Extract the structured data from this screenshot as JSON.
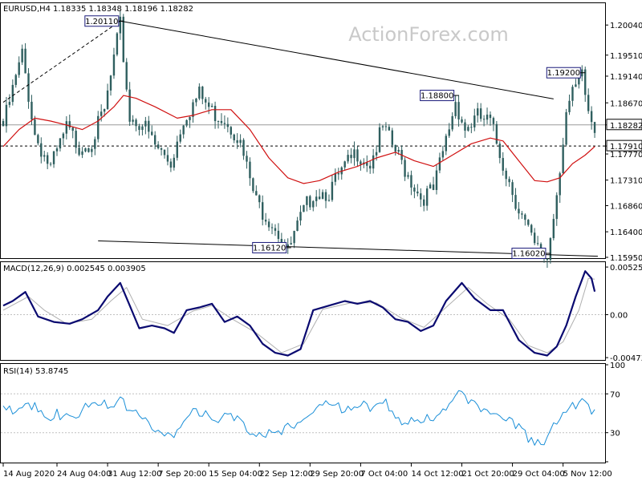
{
  "symbol": "EURUSD,H4",
  "ohlc_text": "1.18335 1.18348 1.18196 1.18282",
  "watermark": "ActionForex.com",
  "colors": {
    "candle": "#2f5f5f",
    "ma": "#d01010",
    "macd": "#0a0a70",
    "signal": "#b0b0b0",
    "rsi": "#1a8fd8",
    "grid": "#c0c0c0",
    "trendline": "#000000"
  },
  "chart_data": [
    {
      "type": "candlestick",
      "title": "EURUSD,H4",
      "ylim": [
        1.1595,
        1.2041
      ],
      "yticks": [
        "1.20040",
        "1.19510",
        "1.19140",
        "1.18670",
        "1.18282",
        "1.17910",
        "1.17770",
        "1.17310",
        "1.16860",
        "1.16400",
        "1.15950"
      ],
      "current_price": "1.18282",
      "support_level": "1.17910",
      "annotations": [
        {
          "text": "1.20110",
          "value": 1.2011,
          "x_index": 37
        },
        {
          "text": "1.18800",
          "value": 1.188,
          "x_index": 143
        },
        {
          "text": "1.19200",
          "value": 1.192,
          "x_index": 183
        },
        {
          "text": "1.16120",
          "value": 1.1612,
          "x_index": 90
        },
        {
          "text": "1.16020",
          "value": 1.1602,
          "x_index": 172
        }
      ],
      "price_path": [
        [
          0,
          1.1835
        ],
        [
          6,
          1.196
        ],
        [
          10,
          1.182
        ],
        [
          15,
          1.176
        ],
        [
          20,
          1.183
        ],
        [
          24,
          1.18
        ],
        [
          28,
          1.181
        ],
        [
          32,
          1.186
        ],
        [
          37,
          1.2011
        ],
        [
          40,
          1.185
        ],
        [
          44,
          1.184
        ],
        [
          48,
          1.18
        ],
        [
          53,
          1.177
        ],
        [
          57,
          1.185
        ],
        [
          62,
          1.189
        ],
        [
          66,
          1.186
        ],
        [
          70,
          1.185
        ],
        [
          74,
          1.182
        ],
        [
          80,
          1.17
        ],
        [
          86,
          1.166
        ],
        [
          90,
          1.1612
        ],
        [
          94,
          1.167
        ],
        [
          98,
          1.172
        ],
        [
          103,
          1.172
        ],
        [
          108,
          1.176
        ],
        [
          112,
          1.179
        ],
        [
          116,
          1.177
        ],
        [
          120,
          1.183
        ],
        [
          124,
          1.179
        ],
        [
          128,
          1.175
        ],
        [
          132,
          1.171
        ],
        [
          136,
          1.172
        ],
        [
          140,
          1.181
        ],
        [
          143,
          1.188
        ],
        [
          146,
          1.183
        ],
        [
          150,
          1.185
        ],
        [
          154,
          1.184
        ],
        [
          158,
          1.177
        ],
        [
          163,
          1.169
        ],
        [
          168,
          1.162
        ],
        [
          172,
          1.1602
        ],
        [
          175,
          1.172
        ],
        [
          178,
          1.186
        ],
        [
          181,
          1.19
        ],
        [
          183,
          1.192
        ],
        [
          185,
          1.186
        ],
        [
          187,
          1.1828
        ]
      ],
      "ma_path": [
        [
          0,
          1.179
        ],
        [
          5,
          1.182
        ],
        [
          10,
          1.184
        ],
        [
          15,
          1.1835
        ],
        [
          20,
          1.1828
        ],
        [
          25,
          1.182
        ],
        [
          30,
          1.1835
        ],
        [
          35,
          1.186
        ],
        [
          38,
          1.188
        ],
        [
          42,
          1.1875
        ],
        [
          48,
          1.186
        ],
        [
          55,
          1.184
        ],
        [
          60,
          1.1845
        ],
        [
          66,
          1.1855
        ],
        [
          72,
          1.1855
        ],
        [
          78,
          1.182
        ],
        [
          84,
          1.177
        ],
        [
          90,
          1.1735
        ],
        [
          95,
          1.1725
        ],
        [
          100,
          1.173
        ],
        [
          106,
          1.1745
        ],
        [
          112,
          1.1755
        ],
        [
          118,
          1.177
        ],
        [
          124,
          1.178
        ],
        [
          130,
          1.1765
        ],
        [
          136,
          1.1755
        ],
        [
          142,
          1.1775
        ],
        [
          148,
          1.1795
        ],
        [
          154,
          1.1805
        ],
        [
          158,
          1.18
        ],
        [
          163,
          1.1765
        ],
        [
          168,
          1.173
        ],
        [
          172,
          1.1728
        ],
        [
          176,
          1.1735
        ],
        [
          180,
          1.176
        ],
        [
          184,
          1.1775
        ],
        [
          187,
          1.179
        ]
      ],
      "trendlines": [
        {
          "from": [
            37,
            1.2011
          ],
          "to": [
            174,
            1.1874
          ]
        },
        {
          "from": [
            0,
            1.1868
          ],
          "to": [
            37,
            1.2011
          ],
          "style": "dashed"
        },
        {
          "from": [
            30,
            1.1624
          ],
          "to": [
            188,
            1.1597
          ]
        }
      ]
    },
    {
      "type": "line",
      "title": "MACD(12,26,9) 0.002545 0.003905",
      "ylim": [
        -0.0049,
        0.0057
      ],
      "yticks": [
        "0.00525",
        "0.00",
        "-0.004732"
      ],
      "series": [
        {
          "name": "MACD",
          "path": [
            [
              0,
              0.001
            ],
            [
              3,
              0.0015
            ],
            [
              7,
              0.0025
            ],
            [
              11,
              -0.0002
            ],
            [
              16,
              -0.0008
            ],
            [
              21,
              -0.001
            ],
            [
              25,
              -0.0005
            ],
            [
              30,
              0.0005
            ],
            [
              33,
              0.002
            ],
            [
              37,
              0.0035
            ],
            [
              40,
              0.001
            ],
            [
              43,
              -0.0015
            ],
            [
              47,
              -0.0012
            ],
            [
              51,
              -0.0015
            ],
            [
              54,
              -0.002
            ],
            [
              58,
              0.0005
            ],
            [
              62,
              0.0008
            ],
            [
              66,
              0.0012
            ],
            [
              70,
              -0.0008
            ],
            [
              74,
              -0.0002
            ],
            [
              78,
              -0.0012
            ],
            [
              82,
              -0.0032
            ],
            [
              86,
              -0.0042
            ],
            [
              90,
              -0.0045
            ],
            [
              94,
              -0.0038
            ],
            [
              98,
              0.0005
            ],
            [
              103,
              0.001
            ],
            [
              108,
              0.0015
            ],
            [
              112,
              0.0012
            ],
            [
              116,
              0.0015
            ],
            [
              120,
              0.0008
            ],
            [
              124,
              -0.0005
            ],
            [
              128,
              -0.0008
            ],
            [
              132,
              -0.0018
            ],
            [
              136,
              -0.0012
            ],
            [
              140,
              0.0015
            ],
            [
              145,
              0.0035
            ],
            [
              149,
              0.0018
            ],
            [
              154,
              0.0005
            ],
            [
              158,
              0.0005
            ],
            [
              163,
              -0.0028
            ],
            [
              168,
              -0.0042
            ],
            [
              172,
              -0.0045
            ],
            [
              175,
              -0.0035
            ],
            [
              178,
              -0.0012
            ],
            [
              181,
              0.002
            ],
            [
              184,
              0.0048
            ],
            [
              186,
              0.004
            ],
            [
              187,
              0.002545
            ]
          ]
        },
        {
          "name": "Signal",
          "path": [
            [
              0,
              0.0005
            ],
            [
              8,
              0.002
            ],
            [
              13,
              0.0005
            ],
            [
              20,
              -0.001
            ],
            [
              28,
              -0.0005
            ],
            [
              34,
              0.0015
            ],
            [
              39,
              0.003
            ],
            [
              44,
              -0.0005
            ],
            [
              52,
              -0.0012
            ],
            [
              60,
              0.0004
            ],
            [
              66,
              0.001
            ],
            [
              72,
              -0.0004
            ],
            [
              80,
              -0.002
            ],
            [
              88,
              -0.0042
            ],
            [
              95,
              -0.0032
            ],
            [
              101,
              0.0006
            ],
            [
              110,
              0.0013
            ],
            [
              118,
              0.0013
            ],
            [
              126,
              -0.0004
            ],
            [
              133,
              -0.0014
            ],
            [
              140,
              0.0008
            ],
            [
              147,
              0.003
            ],
            [
              153,
              0.0012
            ],
            [
              160,
              -0.0005
            ],
            [
              166,
              -0.0034
            ],
            [
              172,
              -0.0042
            ],
            [
              177,
              -0.003
            ],
            [
              182,
              0.0005
            ],
            [
              185,
              0.004
            ],
            [
              187,
              0.003905
            ]
          ]
        }
      ]
    },
    {
      "type": "line",
      "title": "RSI(14) 53.8745",
      "ylim": [
        0,
        100
      ],
      "yticks": [
        "100",
        "70",
        "30",
        "0"
      ],
      "levels": [
        70,
        30
      ],
      "series": [
        {
          "name": "RSI",
          "path": [
            [
              0,
              55
            ],
            [
              4,
              62
            ],
            [
              8,
              70
            ],
            [
              11,
              55
            ],
            [
              15,
              45
            ],
            [
              19,
              58
            ],
            [
              23,
              52
            ],
            [
              27,
              60
            ],
            [
              31,
              58
            ],
            [
              35,
              68
            ],
            [
              38,
              74
            ],
            [
              40,
              55
            ],
            [
              44,
              48
            ],
            [
              48,
              40
            ],
            [
              52,
              38
            ],
            [
              56,
              35
            ],
            [
              60,
              55
            ],
            [
              64,
              58
            ],
            [
              68,
              52
            ],
            [
              72,
              48
            ],
            [
              76,
              40
            ],
            [
              80,
              38
            ],
            [
              84,
              34
            ],
            [
              88,
              30
            ],
            [
              92,
              42
            ],
            [
              96,
              58
            ],
            [
              100,
              60
            ],
            [
              104,
              58
            ],
            [
              108,
              62
            ],
            [
              112,
              67
            ],
            [
              116,
              55
            ],
            [
              120,
              64
            ],
            [
              124,
              55
            ],
            [
              128,
              45
            ],
            [
              132,
              42
            ],
            [
              136,
              48
            ],
            [
              140,
              65
            ],
            [
              144,
              75
            ],
            [
              148,
              60
            ],
            [
              152,
              62
            ],
            [
              156,
              57
            ],
            [
              160,
              42
            ],
            [
              164,
              34
            ],
            [
              168,
              28
            ],
            [
              172,
              30
            ],
            [
              175,
              42
            ],
            [
              178,
              55
            ],
            [
              181,
              65
            ],
            [
              183,
              70
            ],
            [
              185,
              68
            ],
            [
              187,
              53.87
            ]
          ]
        }
      ]
    }
  ],
  "x_axis": {
    "labels": [
      "14 Aug 2020",
      "24 Aug 04:00",
      "31 Aug 12:00",
      "7 Sep 20:00",
      "15 Sep 04:00",
      "22 Sep 12:00",
      "29 Sep 20:00",
      "7 Oct 04:00",
      "14 Oct 12:00",
      "21 Oct 20:00",
      "29 Oct 04:00",
      "5 Nov 12:00"
    ],
    "indices": [
      0,
      17,
      33,
      49,
      65,
      81,
      97,
      113,
      129,
      145,
      161,
      177
    ]
  }
}
